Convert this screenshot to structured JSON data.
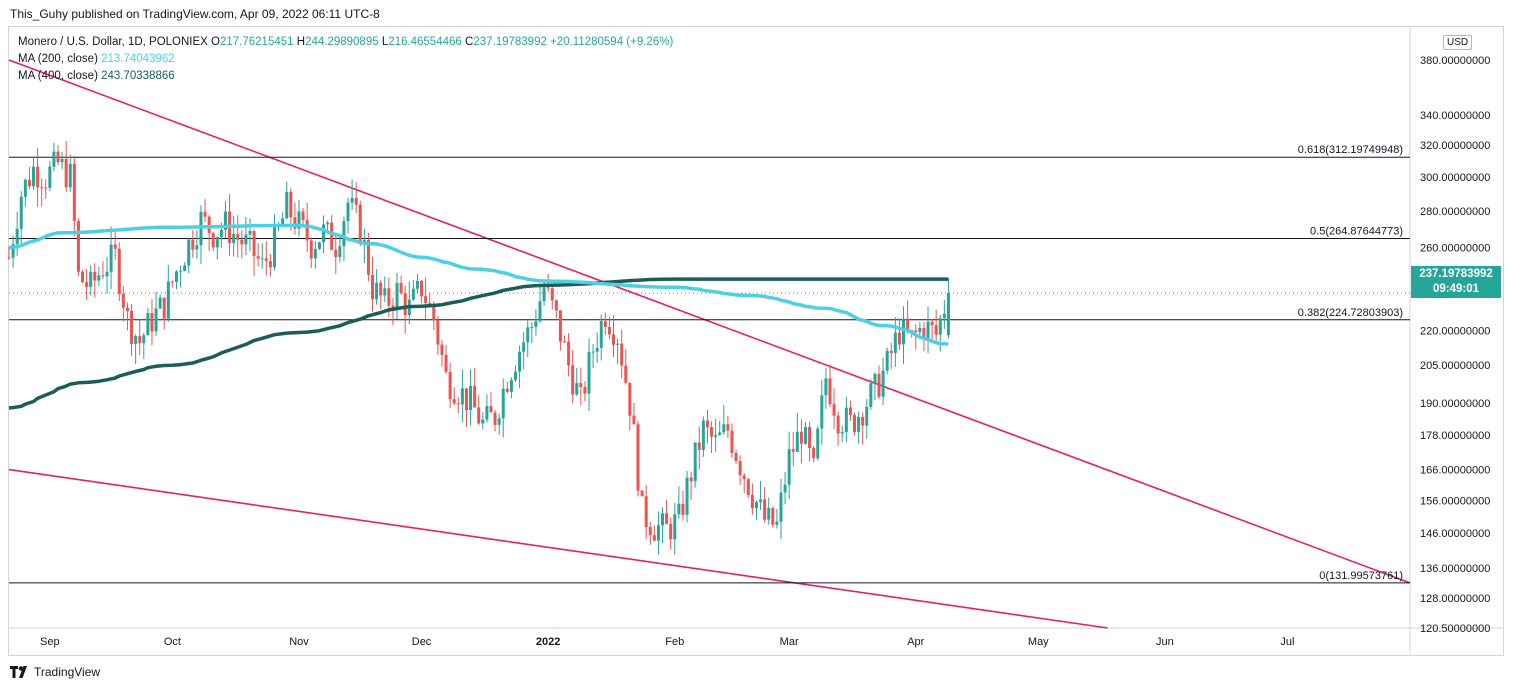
{
  "header": {
    "published": "This_Guhy published on TradingView.com, Apr 09, 2022 06:11 UTC-8"
  },
  "legend": {
    "symbol": "Monero / U.S. Dollar, 1D, POLONIEX",
    "o_label": "O",
    "o": "217.76215451",
    "h_label": "H",
    "h": "244.29890895",
    "l_label": "L",
    "l": "216.46554466",
    "c_label": "C",
    "c": "237.19783992",
    "change": "+20.11280594 (+9.26%)",
    "ma200_label": "MA (200, close)",
    "ma200_value": "213.74043962",
    "ma400_label": "MA (400, close)",
    "ma400_value": "243.70338866"
  },
  "price_axis": {
    "currency": "USD",
    "last_price": "237.19783992",
    "countdown": "09:49:01"
  },
  "footer": {
    "brand": "TradingView"
  },
  "colors": {
    "up": "#26a69a",
    "down": "#ef5350",
    "ma200": "#4dd0e1",
    "ma400": "#1b5e58",
    "trend": "#e91e63"
  },
  "chart_data": {
    "type": "candlestick",
    "title": "Monero / U.S. Dollar, 1D, POLONIEX",
    "scale": "log",
    "ylim": [
      120.5,
      380
    ],
    "y_ticks": [
      "380.00000000",
      "340.00000000",
      "320.00000000",
      "300.00000000",
      "280.00000000",
      "260.00000000",
      "240.00000000",
      "220.00000000",
      "205.00000000",
      "190.00000000",
      "178.00000000",
      "166.00000000",
      "156.00000000",
      "146.00000000",
      "136.00000000",
      "128.00000000",
      "120.50000000"
    ],
    "y_tick_values": [
      380,
      340,
      320,
      300,
      280,
      260,
      240,
      220,
      205,
      190,
      178,
      166,
      156,
      146,
      136,
      128,
      120.5
    ],
    "x_ticks": [
      "Sep",
      "Oct",
      "Nov",
      "Dec",
      "2022",
      "Feb",
      "Mar",
      "Apr",
      "May",
      "Jun",
      "Jul"
    ],
    "x_tick_dates": [
      "2021-09-01",
      "2021-10-01",
      "2021-11-01",
      "2021-12-01",
      "2022-01-01",
      "2022-02-01",
      "2022-03-01",
      "2022-04-01",
      "2022-05-01",
      "2022-06-01",
      "2022-07-01"
    ],
    "x_range": [
      "2021-08-22",
      "2022-07-31"
    ],
    "fib_levels": [
      {
        "label": "0.618(312.19749948)",
        "value": 312.19749948
      },
      {
        "label": "0.5(264.87644773)",
        "value": 264.87644773
      },
      {
        "label": "0.382(224.72803903)",
        "value": 224.72803903
      },
      {
        "label": "0(131.99573761)",
        "value": 131.99573761
      }
    ],
    "trendlines": [
      {
        "name": "upper",
        "points": [
          [
            "2021-08-22",
            380
          ],
          [
            "2022-07-31",
            131.99573761
          ]
        ]
      },
      {
        "name": "lower",
        "points": [
          [
            "2021-08-22",
            166
          ],
          [
            "2022-05-18",
            120.5
          ]
        ]
      }
    ],
    "last_close": 237.19783992,
    "close_series": [
      [
        "2021-08-22",
        255
      ],
      [
        "2021-08-25",
        290
      ],
      [
        "2021-08-28",
        305
      ],
      [
        "2021-08-31",
        300
      ],
      [
        "2021-09-03",
        308
      ],
      [
        "2021-09-06",
        300
      ],
      [
        "2021-09-08",
        245
      ],
      [
        "2021-09-11",
        240
      ],
      [
        "2021-09-14",
        250
      ],
      [
        "2021-09-17",
        255
      ],
      [
        "2021-09-20",
        225
      ],
      [
        "2021-09-23",
        215
      ],
      [
        "2021-09-26",
        225
      ],
      [
        "2021-09-29",
        232
      ],
      [
        "2021-10-02",
        248
      ],
      [
        "2021-10-05",
        262
      ],
      [
        "2021-10-08",
        275
      ],
      [
        "2021-10-11",
        268
      ],
      [
        "2021-10-14",
        272
      ],
      [
        "2021-10-17",
        265
      ],
      [
        "2021-10-20",
        260
      ],
      [
        "2021-10-23",
        250
      ],
      [
        "2021-10-26",
        262
      ],
      [
        "2021-10-29",
        282
      ],
      [
        "2021-11-01",
        272
      ],
      [
        "2021-11-04",
        262
      ],
      [
        "2021-11-07",
        268
      ],
      [
        "2021-11-10",
        262
      ],
      [
        "2021-11-13",
        285
      ],
      [
        "2021-11-16",
        270
      ],
      [
        "2021-11-19",
        240
      ],
      [
        "2021-11-22",
        232
      ],
      [
        "2021-11-25",
        238
      ],
      [
        "2021-11-28",
        230
      ],
      [
        "2021-12-01",
        240
      ],
      [
        "2021-12-04",
        225
      ],
      [
        "2021-12-07",
        200
      ],
      [
        "2021-12-10",
        195
      ],
      [
        "2021-12-13",
        190
      ],
      [
        "2021-12-16",
        182
      ],
      [
        "2021-12-19",
        185
      ],
      [
        "2021-12-22",
        200
      ],
      [
        "2021-12-25",
        212
      ],
      [
        "2021-12-28",
        222
      ],
      [
        "2021-12-31",
        240
      ],
      [
        "2022-01-03",
        225
      ],
      [
        "2022-01-06",
        205
      ],
      [
        "2022-01-09",
        190
      ],
      [
        "2022-01-12",
        212
      ],
      [
        "2022-01-15",
        228
      ],
      [
        "2022-01-18",
        218
      ],
      [
        "2022-01-21",
        190
      ],
      [
        "2022-01-24",
        152
      ],
      [
        "2022-01-27",
        148
      ],
      [
        "2022-01-30",
        147
      ],
      [
        "2022-02-02",
        150
      ],
      [
        "2022-02-05",
        165
      ],
      [
        "2022-02-08",
        180
      ],
      [
        "2022-02-11",
        175
      ],
      [
        "2022-02-14",
        180
      ],
      [
        "2022-02-17",
        168
      ],
      [
        "2022-02-20",
        158
      ],
      [
        "2022-02-23",
        150
      ],
      [
        "2022-02-26",
        148
      ],
      [
        "2022-03-01",
        170
      ],
      [
        "2022-03-04",
        180
      ],
      [
        "2022-03-07",
        165
      ],
      [
        "2022-03-10",
        200
      ],
      [
        "2022-03-13",
        185
      ],
      [
        "2022-03-16",
        182
      ],
      [
        "2022-03-19",
        188
      ],
      [
        "2022-03-22",
        195
      ],
      [
        "2022-03-25",
        205
      ],
      [
        "2022-03-28",
        220
      ],
      [
        "2022-03-31",
        216
      ],
      [
        "2022-04-03",
        222
      ],
      [
        "2022-04-06",
        218
      ],
      [
        "2022-04-09",
        237.2
      ]
    ],
    "ma200_series": [
      [
        "2021-08-22",
        260
      ],
      [
        "2021-09-05",
        268
      ],
      [
        "2021-10-01",
        271
      ],
      [
        "2021-11-01",
        272
      ],
      [
        "2021-11-20",
        262
      ],
      [
        "2021-12-01",
        255
      ],
      [
        "2021-12-15",
        249
      ],
      [
        "2022-01-01",
        243
      ],
      [
        "2022-02-01",
        240
      ],
      [
        "2022-02-20",
        236
      ],
      [
        "2022-03-10",
        230
      ],
      [
        "2022-03-25",
        222
      ],
      [
        "2022-04-09",
        214
      ]
    ],
    "ma400_series": [
      [
        "2021-08-22",
        188
      ],
      [
        "2021-09-10",
        198
      ],
      [
        "2021-10-01",
        205
      ],
      [
        "2021-11-01",
        219
      ],
      [
        "2021-12-01",
        231
      ],
      [
        "2022-01-01",
        241
      ],
      [
        "2022-02-01",
        244
      ],
      [
        "2022-03-01",
        244
      ],
      [
        "2022-04-09",
        244
      ]
    ]
  }
}
